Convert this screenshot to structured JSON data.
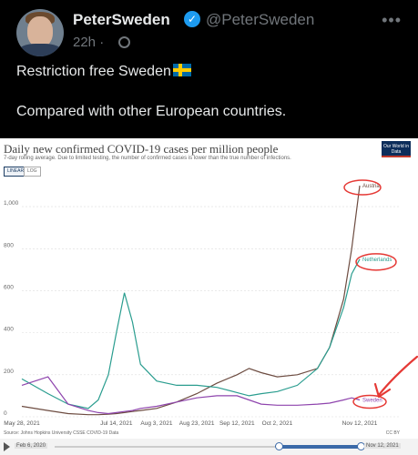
{
  "tweet": {
    "display_name": "PeterSweden",
    "handle": "@PeterSweden",
    "time": "22h",
    "separator": "·",
    "text_line1": "Restriction free Sweden",
    "text_line2": "Compared with other European countries.",
    "more_label": "•••"
  },
  "chart_card": {
    "title": "Daily new confirmed COVID-19 cases per million people",
    "subtitle": "7-day rolling average. Due to limited testing, the number of confirmed cases is lower than the true number of infections.",
    "logo_text": "Our World in Data",
    "scale_linear": "LINEAR",
    "scale_log": "LOG",
    "source": "Source: Johns Hopkins University CSSE COVID-19 Data",
    "license": "CC BY",
    "timeline_start": "Feb 6, 2020",
    "timeline_end": "Nov 12, 2021"
  },
  "chart_data": {
    "type": "line",
    "x": [
      "2021-05-28",
      "2021-06-10",
      "2021-06-20",
      "2021-06-30",
      "2021-07-05",
      "2021-07-10",
      "2021-07-14",
      "2021-07-18",
      "2021-07-22",
      "2021-07-26",
      "2021-08-03",
      "2021-08-13",
      "2021-08-23",
      "2021-09-02",
      "2021-09-12",
      "2021-09-18",
      "2021-09-24",
      "2021-10-02",
      "2021-10-12",
      "2021-10-22",
      "2021-10-28",
      "2021-11-04",
      "2021-11-08",
      "2021-11-12"
    ],
    "series": [
      {
        "name": "Austria",
        "color": "#6d4c41",
        "values": [
          50,
          30,
          15,
          10,
          10,
          12,
          15,
          20,
          25,
          30,
          40,
          70,
          110,
          160,
          200,
          230,
          210,
          190,
          200,
          230,
          330,
          560,
          800,
          1100
        ]
      },
      {
        "name": "Netherlands",
        "color": "#2a9d8f",
        "values": [
          180,
          110,
          60,
          40,
          80,
          200,
          400,
          590,
          450,
          250,
          170,
          150,
          150,
          140,
          115,
          100,
          110,
          120,
          150,
          230,
          330,
          520,
          680,
          750
        ]
      },
      {
        "name": "Sweden",
        "color": "#8e44ad",
        "values": [
          150,
          190,
          60,
          30,
          20,
          15,
          20,
          25,
          30,
          40,
          50,
          70,
          90,
          100,
          100,
          80,
          60,
          55,
          55,
          60,
          65,
          80,
          90,
          80
        ]
      }
    ],
    "xticks": [
      "May 28, 2021",
      "Jul 14, 2021",
      "Aug 3, 2021",
      "Aug 23, 2021",
      "Sep 12, 2021",
      "Oct 2, 2021",
      "Nov 12, 2021"
    ],
    "yticks": [
      0,
      200,
      400,
      600,
      800,
      1000
    ],
    "ytick_labels": [
      "0",
      "200",
      "400",
      "600",
      "800",
      "1,000"
    ],
    "ylim": [
      0,
      1100
    ],
    "grid": true,
    "annotation_color": "#e53935"
  }
}
